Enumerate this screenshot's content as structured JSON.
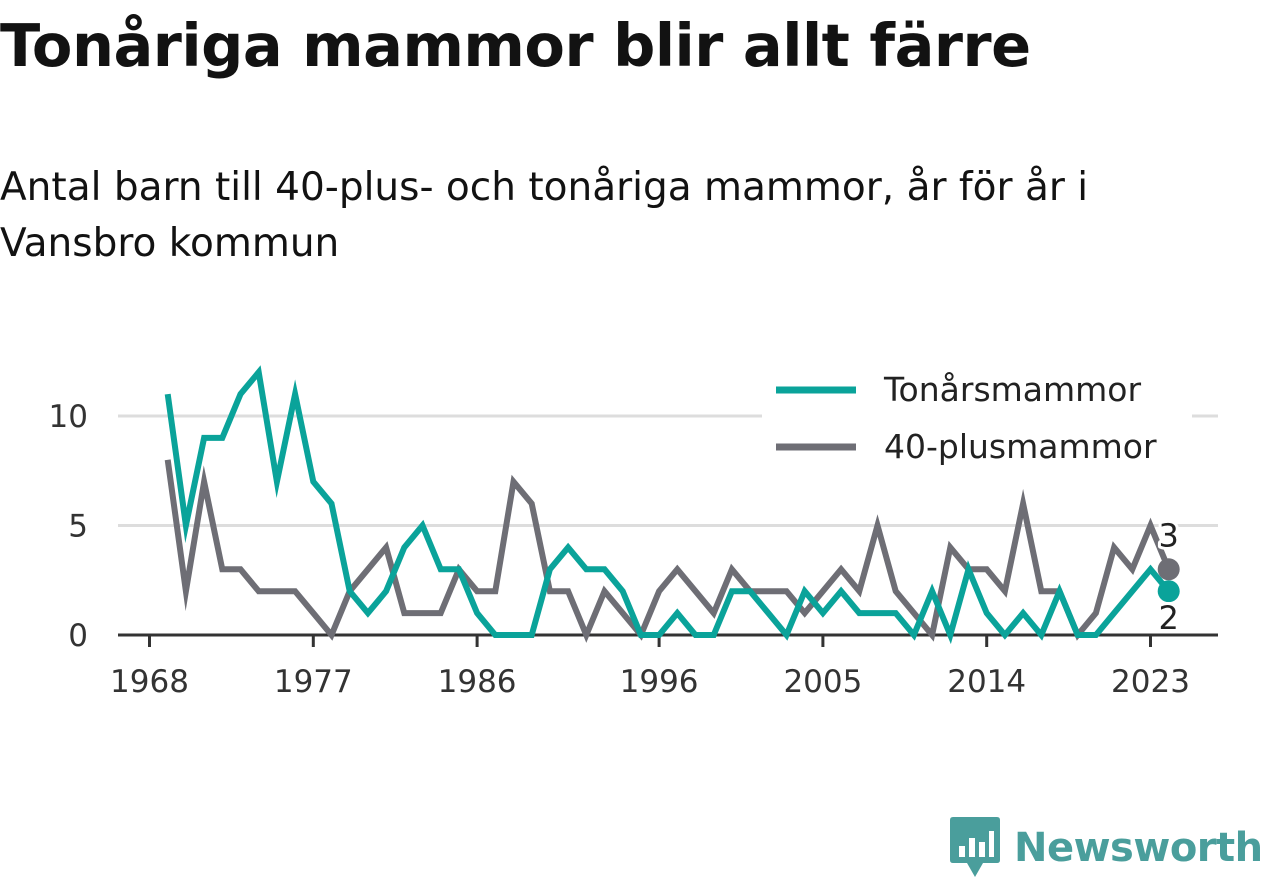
{
  "title": "Tonåriga mammor blir allt färre",
  "subtitle": "Antal barn till 40-plus- och tonåriga mammor, år för år i Vansbro kommun",
  "brand": {
    "name": "Newsworthy",
    "logo_icon": "bar-chart-speech-bubble-icon",
    "color": "#4a9e9c"
  },
  "chart_data": {
    "type": "line",
    "x": [
      1969,
      1970,
      1971,
      1972,
      1973,
      1974,
      1975,
      1976,
      1977,
      1978,
      1979,
      1980,
      1981,
      1982,
      1983,
      1984,
      1985,
      1986,
      1987,
      1988,
      1989,
      1990,
      1991,
      1992,
      1993,
      1994,
      1995,
      1996,
      1997,
      1998,
      1999,
      2000,
      2001,
      2002,
      2003,
      2004,
      2005,
      2006,
      2007,
      2008,
      2009,
      2010,
      2011,
      2012,
      2013,
      2014,
      2015,
      2016,
      2017,
      2018,
      2019,
      2020,
      2021,
      2022,
      2023,
      2024
    ],
    "series": [
      {
        "name": "Tonårsmammor",
        "color": "#0aa39a",
        "values": [
          11,
          5,
          9,
          9,
          11,
          12,
          7,
          11,
          7,
          6,
          2,
          1,
          2,
          4,
          5,
          3,
          3,
          1,
          0,
          0,
          0,
          3,
          4,
          3,
          3,
          2,
          0,
          0,
          1,
          0,
          0,
          2,
          2,
          1,
          0,
          2,
          1,
          2,
          1,
          1,
          1,
          0,
          2,
          0,
          3,
          1,
          0,
          1,
          0,
          2,
          0,
          0,
          1,
          2,
          3,
          2
        ]
      },
      {
        "name": "40-plusmammor",
        "color": "#6e6e75",
        "values": [
          8,
          2,
          7,
          3,
          3,
          2,
          2,
          2,
          1,
          0,
          2,
          3,
          4,
          1,
          1,
          1,
          3,
          2,
          2,
          7,
          6,
          2,
          2,
          0,
          2,
          1,
          0,
          2,
          3,
          2,
          1,
          3,
          2,
          2,
          2,
          1,
          2,
          3,
          2,
          5,
          2,
          1,
          0,
          4,
          3,
          3,
          2,
          6,
          2,
          2,
          0,
          1,
          4,
          3,
          5,
          3
        ]
      }
    ],
    "xticks": [
      "1968",
      "1977",
      "1986",
      "1996",
      "2005",
      "2014",
      "2023"
    ],
    "yticks": [
      "0",
      "5",
      "10"
    ],
    "ylim": [
      0,
      12
    ],
    "end_labels": [
      {
        "series": "40-plusmammor",
        "text": "3"
      },
      {
        "series": "Tonårsmammor",
        "text": "2"
      }
    ],
    "grid": true,
    "legend_position": "top-right",
    "axis_color": "#333333",
    "grid_color": "#dddddd"
  }
}
